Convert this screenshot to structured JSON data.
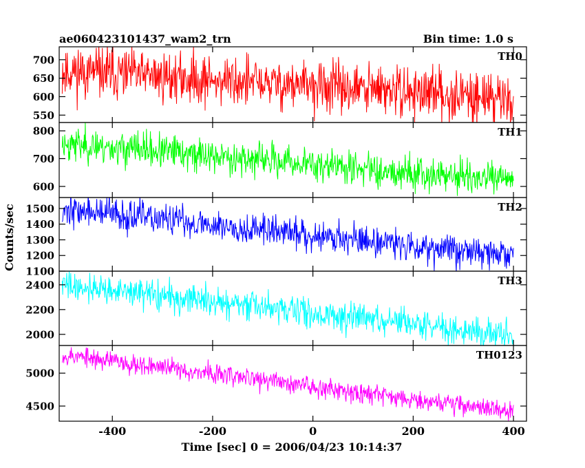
{
  "header": {
    "title": "ae060423101437_wam2_trn",
    "bin_time": "Bin time: 1.0 s"
  },
  "chart_data": {
    "type": "line",
    "title": "ae060423101437_wam2_trn",
    "subtitle": "Bin time: 1.0 s",
    "xlabel": "Time [sec] 0 = 2006/04/23 10:14:37",
    "ylabel": "Counts/sec",
    "xlim": [
      -506,
      426
    ],
    "x_ticks": [
      "-400",
      "-200",
      "0",
      "200",
      "400"
    ],
    "x_tick_values": [
      -400,
      -200,
      0,
      200,
      400
    ],
    "bin_time": 1.0,
    "x_start": -500,
    "x_end": 400,
    "panels": [
      {
        "name": "TH0",
        "color": "#ff0000",
        "ylim": [
          530,
          735
        ],
        "y_ticks": [
          "550",
          "600",
          "650",
          "700"
        ],
        "y_tick_values": [
          550,
          600,
          650,
          700
        ],
        "trend_start": 670,
        "trend_end": 595,
        "noise": 34,
        "seed": 11
      },
      {
        "name": "TH1",
        "color": "#00ff00",
        "ylim": [
          560,
          830
        ],
        "y_ticks": [
          "600",
          "700",
          "800"
        ],
        "y_tick_values": [
          600,
          700,
          800
        ],
        "trend_start": 755,
        "trend_end": 620,
        "noise": 30,
        "seed": 23
      },
      {
        "name": "TH2",
        "color": "#0000ff",
        "ylim": [
          1100,
          1570
        ],
        "y_ticks": [
          "1100",
          "1200",
          "1300",
          "1400",
          "1500"
        ],
        "y_tick_values": [
          1100,
          1200,
          1300,
          1400,
          1500
        ],
        "trend_start": 1495,
        "trend_end": 1200,
        "noise": 50,
        "seed": 37
      },
      {
        "name": "TH3",
        "color": "#00ffff",
        "ylim": [
          1910,
          2510
        ],
        "y_ticks": [
          "2000",
          "2200",
          "2400"
        ],
        "y_tick_values": [
          2000,
          2200,
          2400
        ],
        "trend_start": 2400,
        "trend_end": 1990,
        "noise": 58,
        "seed": 41
      },
      {
        "name": "TH0123",
        "color": "#ff00ff",
        "ylim": [
          4270,
          5420
        ],
        "y_ticks": [
          "4500",
          "5000"
        ],
        "y_tick_values": [
          4500,
          5000
        ],
        "trend_start": 5280,
        "trend_end": 4420,
        "noise": 75,
        "seed": 53
      }
    ]
  }
}
